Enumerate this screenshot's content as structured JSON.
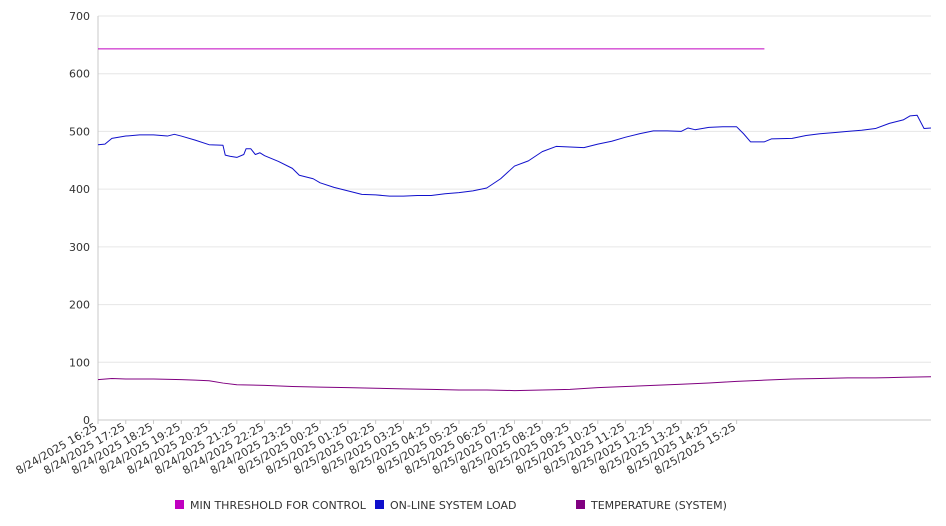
{
  "chart_data": {
    "type": "line",
    "ylim": [
      0,
      700
    ],
    "y_ticks": [
      "0",
      "100",
      "200",
      "300",
      "400",
      "500",
      "600",
      "700"
    ],
    "grid": true,
    "legend_position": "bottom",
    "x_tick_labels": [
      "8/24/2025 16:25",
      "8/24/2025 17:25",
      "8/24/2025 18:25",
      "8/24/2025 19:25",
      "8/24/2025 20:25",
      "8/24/2025 21:25",
      "8/24/2025 22:25",
      "8/24/2025 23:25",
      "8/25/2025 00:25",
      "8/25/2025 01:25",
      "8/25/2025 02:25",
      "8/25/2025 03:25",
      "8/25/2025 04:25",
      "8/25/2025 05:25",
      "8/25/2025 06:25",
      "8/25/2025 07:25",
      "8/25/2025 08:25",
      "8/25/2025 09:25",
      "8/25/2025 10:25",
      "8/25/2025 11:25",
      "8/25/2025 12:25",
      "8/25/2025 13:25",
      "8/25/2025 14:25",
      "8/25/2025 15:25"
    ],
    "series": [
      {
        "name": "MIN THRESHOLD FOR CONTROL",
        "color": "#c000c0",
        "points": [
          [
            "8/24/2025 16:25",
            643
          ],
          [
            "8/25/2025 16:25",
            643
          ]
        ]
      },
      {
        "name": "ON-LINE SYSTEM LOAD",
        "color": "#1010cc",
        "points": [
          [
            "8/24/2025 16:25",
            477
          ],
          [
            "8/24/2025 16:40",
            478
          ],
          [
            "8/24/2025 16:55",
            488
          ],
          [
            "8/24/2025 17:25",
            492
          ],
          [
            "8/24/2025 17:55",
            494
          ],
          [
            "8/24/2025 18:25",
            494
          ],
          [
            "8/24/2025 18:55",
            492
          ],
          [
            "8/24/2025 19:10",
            495
          ],
          [
            "8/24/2025 19:25",
            492
          ],
          [
            "8/24/2025 19:55",
            485
          ],
          [
            "8/24/2025 20:25",
            477
          ],
          [
            "8/24/2025 20:55",
            476
          ],
          [
            "8/24/2025 21:00",
            459
          ],
          [
            "8/24/2025 21:10",
            457
          ],
          [
            "8/24/2025 21:25",
            455
          ],
          [
            "8/24/2025 21:40",
            460
          ],
          [
            "8/24/2025 21:45",
            470
          ],
          [
            "8/24/2025 21:55",
            470
          ],
          [
            "8/24/2025 22:05",
            460
          ],
          [
            "8/24/2025 22:15",
            463
          ],
          [
            "8/24/2025 22:25",
            458
          ],
          [
            "8/24/2025 22:55",
            448
          ],
          [
            "8/24/2025 23:25",
            436
          ],
          [
            "8/24/2025 23:40",
            424
          ],
          [
            "8/25/2025 00:10",
            418
          ],
          [
            "8/25/2025 00:25",
            411
          ],
          [
            "8/25/2025 00:55",
            403
          ],
          [
            "8/25/2025 01:25",
            397
          ],
          [
            "8/25/2025 01:55",
            391
          ],
          [
            "8/25/2025 02:25",
            390
          ],
          [
            "8/25/2025 02:55",
            388
          ],
          [
            "8/25/2025 03:25",
            388
          ],
          [
            "8/25/2025 03:55",
            389
          ],
          [
            "8/25/2025 04:25",
            389
          ],
          [
            "8/25/2025 04:55",
            392
          ],
          [
            "8/25/2025 05:25",
            394
          ],
          [
            "8/25/2025 05:55",
            397
          ],
          [
            "8/25/2025 06:25",
            402
          ],
          [
            "8/25/2025 06:55",
            418
          ],
          [
            "8/25/2025 07:25",
            440
          ],
          [
            "8/25/2025 07:55",
            449
          ],
          [
            "8/25/2025 08:25",
            465
          ],
          [
            "8/25/2025 08:55",
            474
          ],
          [
            "8/25/2025 09:25",
            473
          ],
          [
            "8/25/2025 09:55",
            472
          ],
          [
            "8/25/2025 10:25",
            478
          ],
          [
            "8/25/2025 10:55",
            483
          ],
          [
            "8/25/2025 11:25",
            490
          ],
          [
            "8/25/2025 11:55",
            496
          ],
          [
            "8/25/2025 12:25",
            501
          ],
          [
            "8/25/2025 12:55",
            501
          ],
          [
            "8/25/2025 13:25",
            500
          ],
          [
            "8/25/2025 13:40",
            506
          ],
          [
            "8/25/2025 13:55",
            503
          ],
          [
            "8/25/2025 14:25",
            507
          ],
          [
            "8/25/2025 14:55",
            508
          ],
          [
            "8/25/2025 15:25",
            508
          ],
          [
            "8/25/2025 15:40",
            496
          ],
          [
            "8/25/2025 15:55",
            482
          ],
          [
            "8/25/2025 16:25",
            482
          ],
          [
            "8/25/2025 16:40",
            487
          ],
          [
            "8/25/2025 17:25",
            488
          ],
          [
            "8/25/2025 17:55",
            493
          ],
          [
            "8/25/2025 18:25",
            496
          ],
          [
            "8/25/2025 18:55",
            498
          ],
          [
            "8/25/2025 19:25",
            500
          ],
          [
            "8/25/2025 19:55",
            502
          ],
          [
            "8/25/2025 20:25",
            505
          ],
          [
            "8/25/2025 20:55",
            514
          ],
          [
            "8/25/2025 21:25",
            520
          ],
          [
            "8/25/2025 21:40",
            527
          ],
          [
            "8/25/2025 21:55",
            528
          ],
          [
            "8/25/2025 22:10",
            505
          ],
          [
            "8/25/2025 22:25",
            506
          ]
        ]
      },
      {
        "name": "TEMPERATURE (SYSTEM)",
        "color": "#800080",
        "points": [
          [
            "8/24/2025 16:25",
            70
          ],
          [
            "8/24/2025 16:55",
            72
          ],
          [
            "8/24/2025 17:25",
            71
          ],
          [
            "8/24/2025 18:25",
            71
          ],
          [
            "8/24/2025 19:25",
            70
          ],
          [
            "8/24/2025 19:55",
            69
          ],
          [
            "8/24/2025 20:25",
            68
          ],
          [
            "8/24/2025 20:55",
            64
          ],
          [
            "8/24/2025 21:25",
            61
          ],
          [
            "8/24/2025 22:25",
            60
          ],
          [
            "8/24/2025 23:25",
            58
          ],
          [
            "8/25/2025 00:25",
            57
          ],
          [
            "8/25/2025 01:25",
            56
          ],
          [
            "8/25/2025 02:25",
            55
          ],
          [
            "8/25/2025 03:25",
            54
          ],
          [
            "8/25/2025 04:25",
            53
          ],
          [
            "8/25/2025 05:25",
            52
          ],
          [
            "8/25/2025 06:25",
            52
          ],
          [
            "8/25/2025 07:25",
            51
          ],
          [
            "8/25/2025 08:25",
            52
          ],
          [
            "8/25/2025 09:25",
            53
          ],
          [
            "8/25/2025 10:25",
            56
          ],
          [
            "8/25/2025 11:25",
            58
          ],
          [
            "8/25/2025 12:25",
            60
          ],
          [
            "8/25/2025 13:25",
            62
          ],
          [
            "8/25/2025 14:25",
            64
          ],
          [
            "8/25/2025 15:25",
            67
          ],
          [
            "8/25/2025 16:25",
            69
          ],
          [
            "8/25/2025 17:25",
            71
          ],
          [
            "8/25/2025 18:25",
            72
          ],
          [
            "8/25/2025 19:25",
            73
          ],
          [
            "8/25/2025 20:25",
            73
          ],
          [
            "8/25/2025 21:25",
            74
          ],
          [
            "8/25/2025 22:25",
            75
          ]
        ]
      }
    ]
  }
}
